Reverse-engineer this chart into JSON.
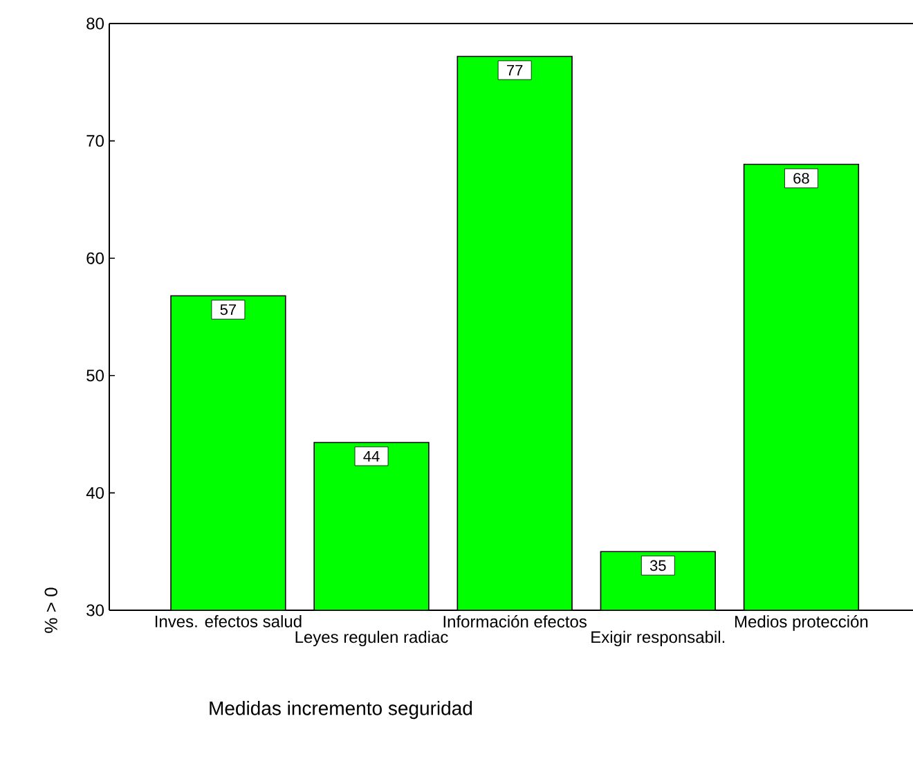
{
  "chart_data": {
    "type": "bar",
    "xlabel": "Medidas incremento seguridad",
    "ylabel": "% > 0",
    "categories": [
      "Inves. efectos salud",
      "Leyes regulen radiac",
      "Información efectos",
      "Exigir responsabil.",
      "Medios protección"
    ],
    "values": [
      56.8,
      44.3,
      77.2,
      35.0,
      68.0
    ],
    "value_labels": [
      "57",
      "44",
      "77",
      "35",
      "68"
    ],
    "color": "#00ff00",
    "ylim": [
      30,
      80
    ],
    "yticks": [
      30,
      40,
      50,
      60,
      70,
      80
    ]
  }
}
